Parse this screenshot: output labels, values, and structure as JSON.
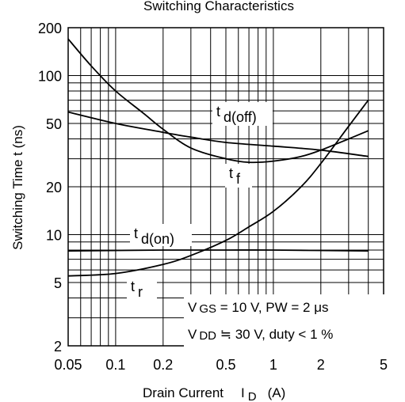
{
  "chart_data": {
    "type": "line",
    "title": "Switching Characteristics",
    "xlabel": {
      "main": "Drain Current",
      "symbol": "I",
      "subscript": "D",
      "unit": "(A)"
    },
    "ylabel": "Switching Time  t  (ns)",
    "x_scale": "log",
    "y_scale": "log",
    "xlim": [
      0.05,
      5
    ],
    "ylim": [
      2,
      200
    ],
    "x_ticks": [
      "0.05",
      "0.1",
      "0.2",
      "0.5",
      "1",
      "2",
      "5"
    ],
    "y_ticks": [
      "2",
      "5",
      "10",
      "20",
      "50",
      "100",
      "200"
    ],
    "grid": true,
    "series": [
      {
        "name": "td(off)",
        "label": {
          "main": "t",
          "sub": "d(off)"
        },
        "x": [
          0.05,
          0.1,
          0.2,
          0.3,
          0.5,
          1,
          2,
          4
        ],
        "y": [
          59,
          50,
          44,
          41,
          38,
          36,
          34,
          31
        ]
      },
      {
        "name": "tf",
        "label": {
          "main": "t",
          "sub": "f"
        },
        "x": [
          0.05,
          0.07,
          0.1,
          0.15,
          0.2,
          0.3,
          0.5,
          0.7,
          1,
          1.5,
          2,
          3,
          4
        ],
        "y": [
          170,
          115,
          80,
          58,
          46,
          35,
          30,
          28.5,
          29,
          31,
          34,
          40,
          45
        ]
      },
      {
        "name": "td(on)",
        "label": {
          "main": "t",
          "sub": "d(on)"
        },
        "x": [
          0.05,
          0.2,
          0.5,
          1,
          4
        ],
        "y": [
          7.9,
          8.0,
          8.0,
          8.0,
          7.9
        ]
      },
      {
        "name": "tr",
        "label": {
          "main": "t",
          "sub": "r"
        },
        "x": [
          0.05,
          0.1,
          0.2,
          0.3,
          0.5,
          0.7,
          1,
          1.5,
          2,
          3,
          4
        ],
        "y": [
          5.5,
          5.7,
          6.5,
          7.4,
          9.2,
          11.2,
          14,
          20,
          28,
          48,
          70
        ]
      }
    ],
    "annotation": {
      "line1": {
        "pre": "V",
        "sub": "GS",
        "post": " = 10 V, PW = 2 μs"
      },
      "line2": {
        "pre": "V",
        "sub": "DD",
        "post": " ≒ 30 V, duty < 1 %"
      }
    }
  }
}
